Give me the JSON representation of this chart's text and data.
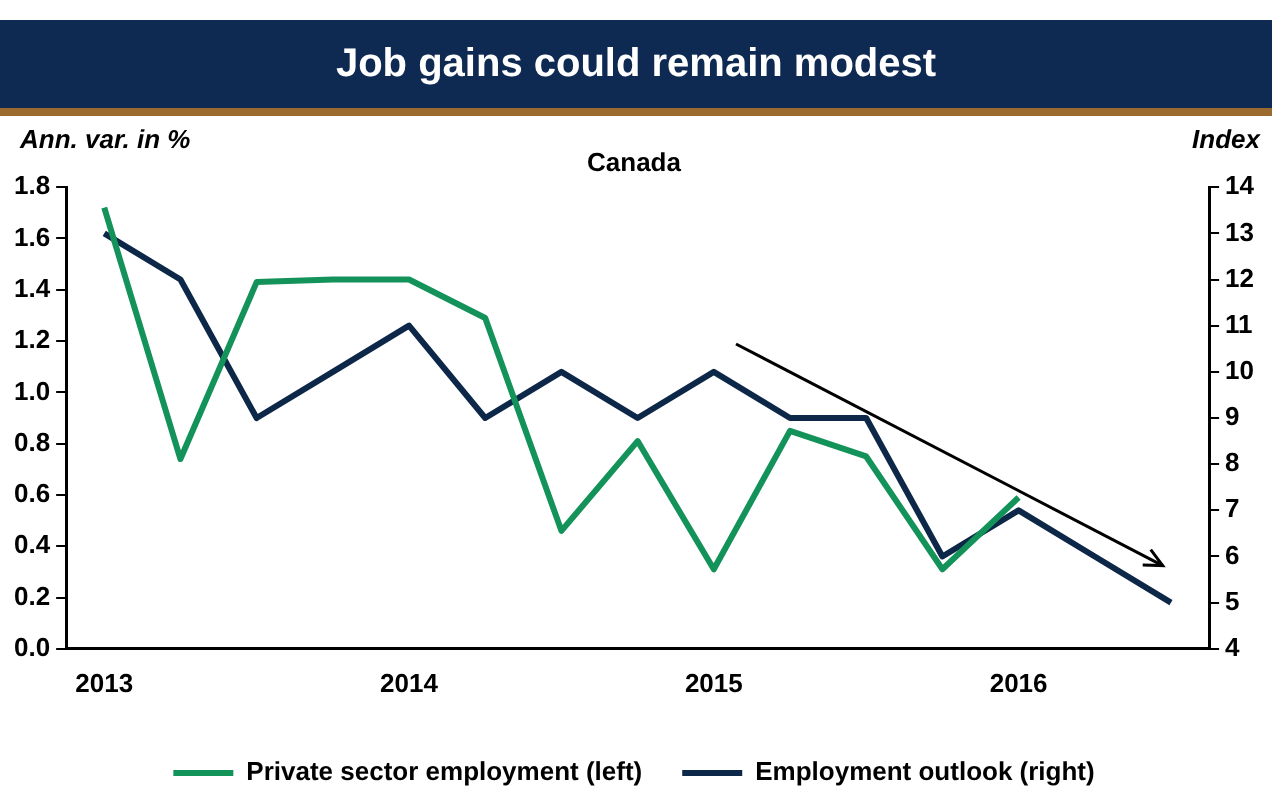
{
  "chart_data": {
    "type": "line",
    "title": "Job gains could remain modest",
    "subtitle": "Canada",
    "ylabel": "Ann. var. in %",
    "y2label": "Index",
    "categories": [
      "2013",
      null,
      null,
      null,
      "2014",
      null,
      null,
      null,
      "2015",
      null,
      null,
      null,
      "2016",
      null,
      null
    ],
    "series": [
      {
        "name": "Private sector employment (left)",
        "color": "#13925a",
        "values": [
          1.72,
          0.74,
          1.43,
          1.44,
          1.44,
          1.29,
          0.46,
          0.81,
          0.31,
          0.85,
          0.75,
          0.31,
          0.59,
          null,
          null
        ]
      },
      {
        "name": "Employment outlook (right)",
        "color": "#0d2748",
        "axis": "y2",
        "values": [
          13,
          12,
          9,
          10,
          11,
          9,
          10,
          9,
          10,
          9,
          9,
          6,
          7,
          6,
          5
        ]
      }
    ],
    "ylim": [
      0,
      1.8
    ],
    "yticks": [
      {
        "value": 0,
        "label": "0.0"
      },
      0.2,
      0.4,
      0.6,
      0.8,
      {
        "value": 1,
        "label": "1.0"
      },
      1.2,
      1.4,
      1.6,
      1.8
    ],
    "y2lim": [
      4,
      14
    ],
    "y2ticks": [
      4,
      5,
      6,
      7,
      8,
      9,
      10,
      11,
      12,
      13,
      14
    ],
    "legend": "bottom",
    "grid": false,
    "marker": "none",
    "line_style": "solid"
  }
}
